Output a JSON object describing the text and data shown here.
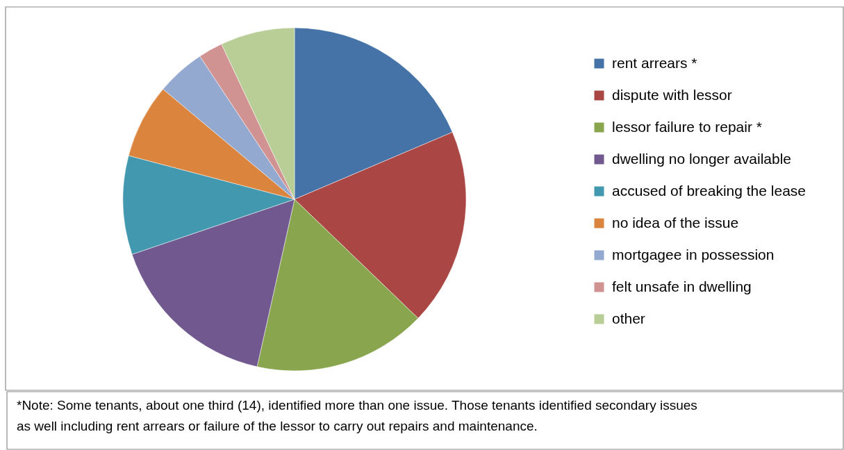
{
  "chart_data": {
    "type": "pie",
    "categories": [
      "rent arrears *",
      "dispute with lessor",
      "lessor failure to repair *",
      "dwelling no longer available",
      "accused of breaking the lease",
      "no idea of the issue",
      "mortgagee in possession",
      "felt unsafe in dwelling",
      "other"
    ],
    "values": [
      18.6,
      18.6,
      16.3,
      16.3,
      9.3,
      7.0,
      4.6,
      2.3,
      7.0
    ],
    "colors": [
      "#4572a7",
      "#aa4643",
      "#89a54e",
      "#71588f",
      "#4198af",
      "#db843d",
      "#93a9cf",
      "#d19392",
      "#b9cd96"
    ],
    "legend": "right",
    "annotations": [
      "*Note: Some tenants, about one third (14), identified more than one issue.  Those tenants identified secondary issues as well including rent arrears or failure of the lessor to carry out repairs and maintenance."
    ]
  }
}
